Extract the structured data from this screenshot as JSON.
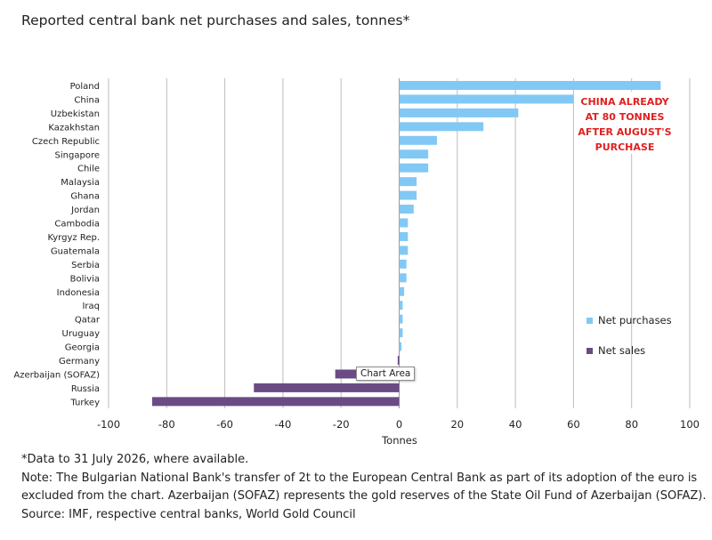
{
  "title": "Reported central bank net purchases and sales, tonnes*",
  "tooltip": "Chart Area",
  "notes": {
    "asterisk": "*Data to 31 July 2026, where available.",
    "note_line1": "Note: The Bulgarian National Bank's transfer of 2t to the European Central Bank as part of its adoption of the euro is",
    "note_line2": "excluded from the chart. Azerbaijan (SOFAZ) represents the gold reserves of the State Oil Fund of Azerbaijan (SOFAZ).",
    "source": "Source: IMF, respective central banks, World Gold Council"
  },
  "colors": {
    "purchases": "#82c8f4",
    "sales": "#6a4b86",
    "annotation": "#e02020",
    "grid": "#bdbdbd"
  },
  "chart_data": {
    "type": "bar",
    "orientation": "horizontal",
    "categories": [
      "Poland",
      "China",
      "Uzbekistan",
      "Kazakhstan",
      "Czech Republic",
      "Singapore",
      "Chile",
      "Malaysia",
      "Ghana",
      "Jordan",
      "Cambodia",
      "Kyrgyz Rep.",
      "Guatemala",
      "Serbia",
      "Bolivia",
      "Indonesia",
      "Iraq",
      "Qatar",
      "Uruguay",
      "Georgia",
      "Germany",
      "Azerbaijan (SOFAZ)",
      "Russia",
      "Turkey"
    ],
    "series": [
      {
        "name": "Net purchases",
        "values": [
          90,
          60,
          41,
          29,
          13,
          10,
          10,
          6,
          6,
          5,
          3,
          3,
          3,
          2.5,
          2.5,
          1.7,
          1.2,
          1.2,
          1.2,
          0.8,
          null,
          null,
          null,
          null
        ]
      },
      {
        "name": "Net sales",
        "values": [
          null,
          null,
          null,
          null,
          null,
          null,
          null,
          null,
          null,
          null,
          null,
          null,
          null,
          null,
          null,
          null,
          null,
          null,
          null,
          null,
          -0.5,
          -22,
          -50,
          -85
        ]
      }
    ],
    "xlabel": "Tonnes",
    "xlim": [
      -100,
      100
    ],
    "xticks": [
      -100,
      -80,
      -60,
      -40,
      -20,
      0,
      20,
      40,
      60,
      80,
      100
    ],
    "grid": "vertical",
    "legend_position": "right",
    "annotation": {
      "lines": [
        "CHINA ALREADY",
        "AT 80 TONNES",
        "AFTER AUGUST'S",
        "PURCHASE"
      ]
    }
  }
}
